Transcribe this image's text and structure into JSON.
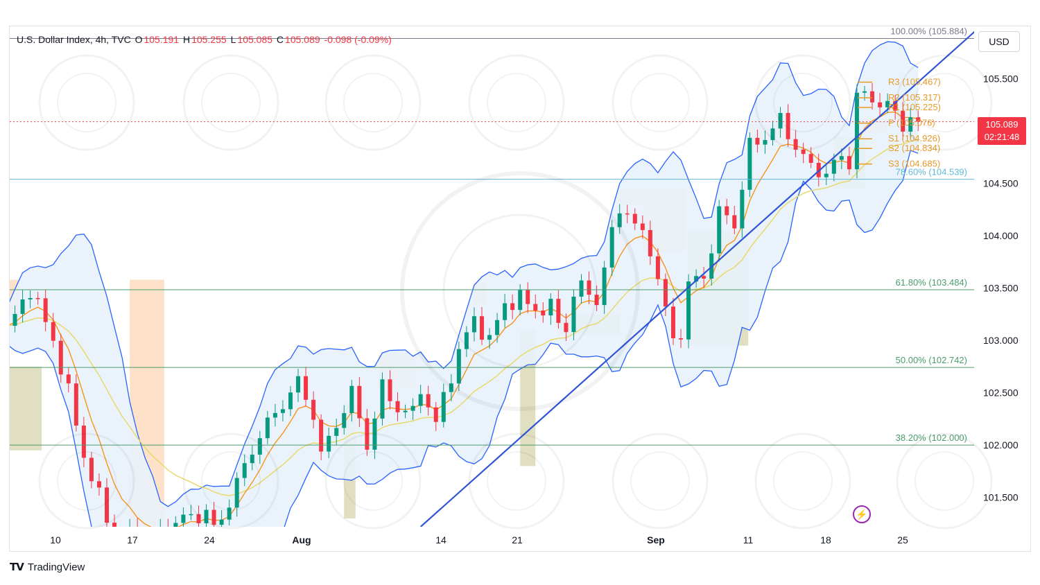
{
  "legend": {
    "symbol": "U.S. Dollar Index, 4h, TVC",
    "open_label": "O",
    "open": "105.191",
    "high_label": "H",
    "high": "105.255",
    "low_label": "L",
    "low": "105.085",
    "close_label": "C",
    "close": "105.089",
    "change": "-0.098 (-0.09%)"
  },
  "currency": "USD",
  "last_price": {
    "value": "105.089",
    "countdown": "02:21:48"
  },
  "brand": {
    "name": "TradingView",
    "logo": "tradingview-logo"
  },
  "colors": {
    "up": "#089981",
    "down": "#f23645",
    "bb": "#2962ff",
    "bb_fill": "#e8f2fb",
    "ma_orange": "#f7931a",
    "ma_yellow": "#e8d96c",
    "trendline": "#2f54d6",
    "fib": "#4a9e6b",
    "pivot": "#e69a28",
    "supply": "#fddcbf",
    "demand": "#dcd9b6"
  },
  "chart_data": {
    "type": "candlestick",
    "title": "U.S. Dollar Index, 4h, TVC",
    "xlabel": "",
    "ylabel": "",
    "ylim": [
      101.22,
      106.0
    ],
    "y_ticks": [
      "105.500",
      "104.500",
      "104.000",
      "103.500",
      "103.000",
      "102.500",
      "102.000",
      "101.500"
    ],
    "x_ticks": [
      "10",
      "17",
      "24",
      "Aug",
      "14",
      "21",
      "Sep",
      "11",
      "18",
      "25"
    ],
    "fibonacci": [
      {
        "label": "100.00% (105.884)",
        "level": 105.884
      },
      {
        "label": "78.60% (104.539)",
        "level": 104.539
      },
      {
        "label": "61.80% (103.484)",
        "level": 103.484
      },
      {
        "label": "50.00% (102.742)",
        "level": 102.742
      },
      {
        "label": "38.20% (102.000)",
        "level": 102.0
      }
    ],
    "pivots": [
      {
        "label": "R3 (105.467)",
        "level": 105.467
      },
      {
        "label": "R2 (105.317)",
        "level": 105.317
      },
      {
        "label": "R1 (105.225)",
        "level": 105.225
      },
      {
        "label": "P (105.076)",
        "level": 105.076
      },
      {
        "label": "S1 (104.926)",
        "level": 104.926
      },
      {
        "label": "S2 (104.834)",
        "level": 104.834
      },
      {
        "label": "S3 (104.685)",
        "level": 104.685
      }
    ],
    "price_anchors": [
      [
        0,
        103.1
      ],
      [
        3,
        103.5
      ],
      [
        6,
        103.0
      ],
      [
        8,
        102.5
      ],
      [
        10,
        101.9
      ],
      [
        13,
        101.3
      ],
      [
        14,
        101.15
      ],
      [
        19,
        101.1
      ],
      [
        23,
        101.3
      ],
      [
        26,
        101.35
      ],
      [
        27,
        101.2
      ],
      [
        28,
        101.3
      ],
      [
        31,
        101.8
      ],
      [
        33,
        102.1
      ],
      [
        36,
        102.4
      ],
      [
        38,
        102.6
      ],
      [
        40,
        102.3
      ],
      [
        41,
        101.9
      ],
      [
        43,
        102.2
      ],
      [
        45,
        102.5
      ],
      [
        47,
        102.0
      ],
      [
        49,
        102.55
      ],
      [
        51,
        102.35
      ],
      [
        53,
        102.3
      ],
      [
        54,
        102.55
      ],
      [
        56,
        102.2
      ],
      [
        57,
        102.45
      ],
      [
        59,
        102.9
      ],
      [
        61,
        103.2
      ],
      [
        63,
        103.0
      ],
      [
        65,
        103.35
      ],
      [
        67,
        103.4
      ],
      [
        69,
        103.3
      ],
      [
        71,
        103.3
      ],
      [
        73,
        103.1
      ],
      [
        74,
        103.45
      ],
      [
        76,
        103.5
      ],
      [
        77,
        103.35
      ],
      [
        78,
        103.7
      ],
      [
        80,
        104.3
      ],
      [
        82,
        104.1
      ],
      [
        84,
        103.9
      ],
      [
        85,
        103.55
      ],
      [
        86,
        103.3
      ],
      [
        87,
        103.0
      ],
      [
        88,
        103.1
      ],
      [
        89,
        103.5
      ],
      [
        90,
        103.6
      ],
      [
        91,
        103.6
      ],
      [
        93,
        104.2
      ],
      [
        94,
        104.2
      ],
      [
        95,
        104.1
      ],
      [
        97,
        104.85
      ],
      [
        99,
        104.95
      ],
      [
        101,
        105.1
      ],
      [
        103,
        104.85
      ],
      [
        105,
        104.65
      ],
      [
        107,
        104.6
      ],
      [
        109,
        104.75
      ],
      [
        110,
        104.7
      ],
      [
        111,
        105.35
      ],
      [
        113,
        105.3
      ],
      [
        115,
        105.25
      ],
      [
        117,
        105.05
      ],
      [
        118,
        105.15
      ],
      [
        119,
        105.089
      ]
    ],
    "trendline": {
      "start": [
        54,
        101.22
      ],
      "end": [
        127,
        105.99
      ]
    }
  }
}
